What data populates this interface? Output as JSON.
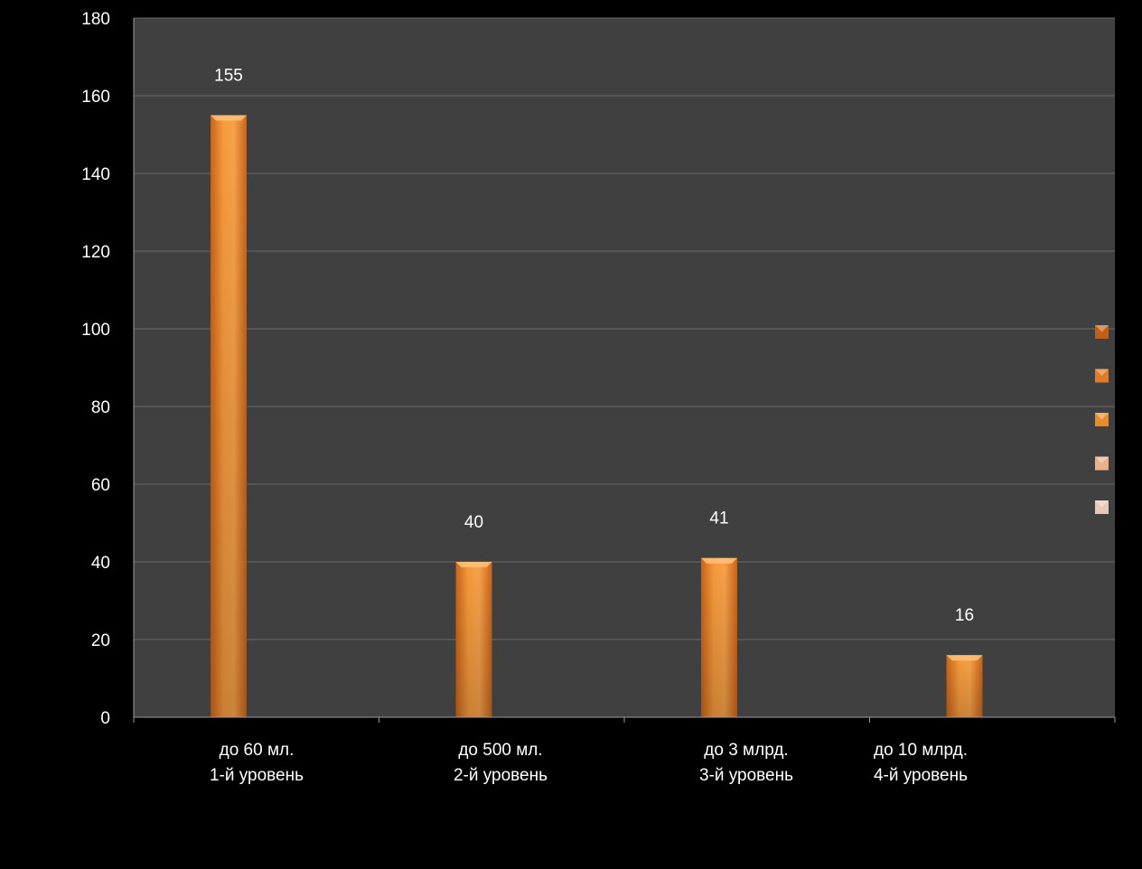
{
  "chart_data": {
    "type": "bar",
    "categories": [
      [
        "до 60 мл.",
        "1-й уровень"
      ],
      [
        "до 500 мл.",
        "2-й уровень"
      ],
      [
        "до 3 млрд.",
        "3-й уровень"
      ],
      [
        "до 10 млрд.",
        "4-й уровень"
      ]
    ],
    "values": [
      155,
      40,
      41,
      16
    ],
    "title": "",
    "xlabel": "",
    "ylabel": "",
    "ylim": [
      0,
      180
    ],
    "yticks": [
      0,
      20,
      40,
      60,
      80,
      100,
      120,
      140,
      160,
      180
    ],
    "grid": true,
    "data_labels": true,
    "legend_markers": 5,
    "legend_position": "right",
    "colors": {
      "page_background": "#000000",
      "plot_background": "#404040",
      "gridline": "#6a6a6a",
      "bar_light": "#f7a24a",
      "bar_dark": "#c9641a",
      "text": "#ffffff",
      "legend_markers": [
        "#c45e16",
        "#e07a24",
        "#e98a2c",
        "#e9b08a",
        "#e9c6b8"
      ]
    }
  }
}
